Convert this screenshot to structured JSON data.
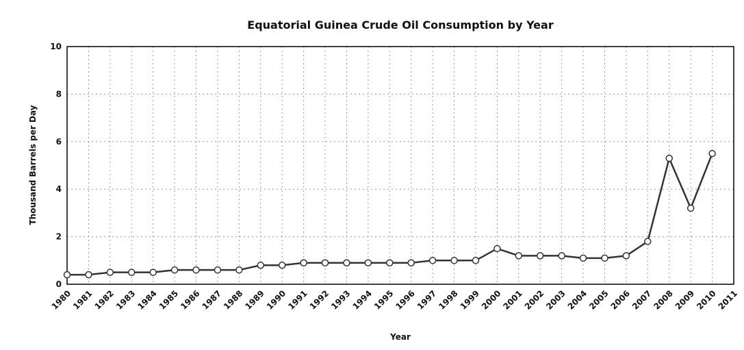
{
  "chart_data": {
    "type": "line",
    "title": "Equatorial Guinea Crude Oil Consumption by Year",
    "x_label": "Year",
    "y_label": "Thousand Barrels per Day",
    "x": [
      1980,
      1981,
      1982,
      1983,
      1984,
      1985,
      1986,
      1987,
      1988,
      1989,
      1990,
      1991,
      1992,
      1993,
      1994,
      1995,
      1996,
      1997,
      1998,
      1999,
      2000,
      2001,
      2002,
      2003,
      2004,
      2005,
      2006,
      2007,
      2008,
      2009,
      2010
    ],
    "series": [
      {
        "name": "Consumption",
        "color": "#333333",
        "values": [
          0.4,
          0.4,
          0.5,
          0.5,
          0.5,
          0.6,
          0.6,
          0.6,
          0.6,
          0.8,
          0.8,
          0.9,
          0.9,
          0.9,
          0.9,
          0.9,
          0.9,
          1.0,
          1.0,
          1.0,
          1.5,
          1.2,
          1.2,
          1.2,
          1.1,
          1.1,
          1.2,
          1.8,
          5.3,
          3.2,
          5.5
        ]
      }
    ],
    "xlim": [
      1980,
      2011
    ],
    "xticks": [
      1980,
      1981,
      1982,
      1983,
      1984,
      1985,
      1986,
      1987,
      1988,
      1989,
      1990,
      1991,
      1992,
      1993,
      1994,
      1995,
      1996,
      1997,
      1998,
      1999,
      2000,
      2001,
      2002,
      2003,
      2004,
      2005,
      2006,
      2007,
      2008,
      2009,
      2010,
      2011
    ],
    "ylim": [
      0,
      10
    ],
    "yticks": [
      0,
      2,
      4,
      6,
      8,
      10
    ],
    "grid": true
  }
}
